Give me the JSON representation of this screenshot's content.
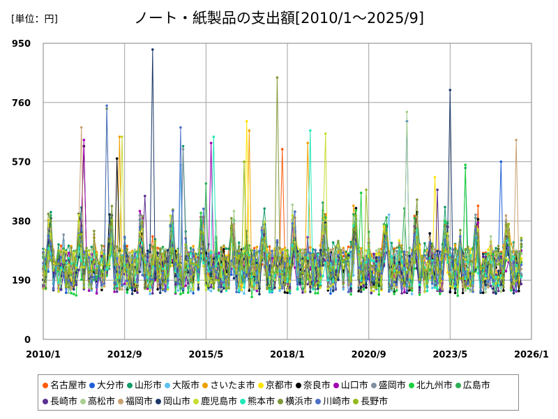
{
  "chart_data": {
    "type": "line",
    "title": "ノート・紙製品の支出額[2010/1～2025/9]",
    "unit_label": "[単位：円]",
    "xlabel": "",
    "ylabel": "",
    "ylim": [
      0,
      950
    ],
    "y_ticks": [
      0,
      190,
      380,
      570,
      760,
      950
    ],
    "y_tick_labels": [
      "0",
      "190",
      "380",
      "570",
      "760",
      "950"
    ],
    "x_range": [
      "2010/1",
      "2026/1"
    ],
    "x_ticks": [
      "2010/1",
      "2012/9",
      "2015/5",
      "2018/1",
      "2020/9",
      "2023/5",
      "2026/1"
    ],
    "grid": true,
    "legend_position": "bottom",
    "period": {
      "start": "2010/1",
      "end": "2025/9"
    },
    "series": [
      {
        "name": "名古屋市",
        "color": "#ff5a0a",
        "level": 230,
        "amp": 110,
        "peaks": [
          [
            43,
            330
          ],
          [
            94,
            610
          ]
        ]
      },
      {
        "name": "大分市",
        "color": "#1f5fd6",
        "level": 215,
        "amp": 105,
        "peaks": [
          [
            143,
            700
          ],
          [
            180,
            570
          ]
        ]
      },
      {
        "name": "山形市",
        "color": "#149c6a",
        "level": 240,
        "amp": 115,
        "peaks": [
          [
            55,
            620
          ],
          [
            166,
            550
          ]
        ]
      },
      {
        "name": "大阪市",
        "color": "#5fc0f0",
        "level": 210,
        "amp": 100,
        "peaks": [
          [
            54,
            560
          ],
          [
            136,
            400
          ]
        ]
      },
      {
        "name": "さいたま市",
        "color": "#f0a000",
        "level": 235,
        "amp": 110,
        "peaks": [
          [
            30,
            650
          ],
          [
            81,
            670
          ],
          [
            104,
            630
          ]
        ]
      },
      {
        "name": "京都市",
        "color": "#ffe400",
        "level": 225,
        "amp": 105,
        "peaks": [
          [
            80,
            700
          ],
          [
            154,
            520
          ]
        ]
      },
      {
        "name": "奈良市",
        "color": "#000000",
        "level": 220,
        "amp": 110,
        "peaks": [
          [
            16,
            620
          ],
          [
            29,
            580
          ]
        ]
      },
      {
        "name": "山口市",
        "color": "#a000b0",
        "level": 215,
        "amp": 105,
        "peaks": [
          [
            16,
            640
          ],
          [
            66,
            630
          ]
        ]
      },
      {
        "name": "盛岡市",
        "color": "#8090a0",
        "level": 225,
        "amp": 100,
        "peaks": [
          [
            55,
            610
          ],
          [
            170,
            400
          ]
        ]
      },
      {
        "name": "北九州市",
        "color": "#1ed040",
        "level": 205,
        "amp": 110,
        "peaks": [
          [
            166,
            560
          ],
          [
            125,
            470
          ]
        ]
      },
      {
        "name": "広島市",
        "color": "#2eae55",
        "level": 230,
        "amp": 105,
        "peaks": [
          [
            64,
            500
          ],
          [
            142,
            420
          ]
        ]
      },
      {
        "name": "長崎市",
        "color": "#5a3090",
        "level": 210,
        "amp": 100,
        "peaks": [
          [
            40,
            460
          ],
          [
            155,
            480
          ]
        ]
      },
      {
        "name": "高松市",
        "color": "#a8d090",
        "level": 220,
        "amp": 110,
        "peaks": [
          [
            143,
            730
          ],
          [
            68,
            380
          ]
        ]
      },
      {
        "name": "福岡市",
        "color": "#c8a070",
        "level": 225,
        "amp": 100,
        "peaks": [
          [
            15,
            680
          ],
          [
            186,
            640
          ]
        ]
      },
      {
        "name": "岡山市",
        "color": "#1a3868",
        "level": 215,
        "amp": 110,
        "peaks": [
          [
            43,
            930
          ],
          [
            160,
            800
          ]
        ]
      },
      {
        "name": "鹿児島市",
        "color": "#c8dc30",
        "level": 220,
        "amp": 105,
        "peaks": [
          [
            111,
            660
          ],
          [
            31,
            650
          ]
        ]
      },
      {
        "name": "熊本市",
        "color": "#20e8b8",
        "level": 215,
        "amp": 100,
        "peaks": [
          [
            67,
            650
          ],
          [
            105,
            670
          ]
        ]
      },
      {
        "name": "横浜市",
        "color": "#809838",
        "level": 230,
        "amp": 110,
        "peaks": [
          [
            92,
            840
          ],
          [
            25,
            740
          ]
        ]
      },
      {
        "name": "川崎市",
        "color": "#4c70c8",
        "level": 220,
        "amp": 105,
        "peaks": [
          [
            25,
            750
          ],
          [
            54,
            680
          ]
        ]
      },
      {
        "name": "長野市",
        "color": "#94b820",
        "level": 225,
        "amp": 100,
        "peaks": [
          [
            79,
            570
          ],
          [
            127,
            480
          ]
        ]
      }
    ]
  }
}
